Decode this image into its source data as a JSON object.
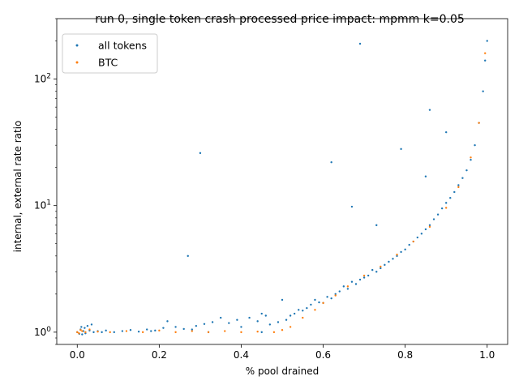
{
  "chart_data": {
    "type": "scatter",
    "title": "run 0, single token crash processed price impact: mpmm k=0.05",
    "xlabel": "% pool drained",
    "ylabel": "internal, external rate ratio",
    "xlim": [
      -0.05,
      1.05
    ],
    "ylim": [
      0.8,
      300
    ],
    "yscale": "log",
    "grid": false,
    "legend_position": "top-left",
    "x_ticks": [
      {
        "value": 0.0,
        "label": "0.0"
      },
      {
        "value": 0.2,
        "label": "0.2"
      },
      {
        "value": 0.4,
        "label": "0.4"
      },
      {
        "value": 0.6,
        "label": "0.6"
      },
      {
        "value": 0.8,
        "label": "0.8"
      },
      {
        "value": 1.0,
        "label": "1.0"
      }
    ],
    "y_ticks": [
      {
        "value": 1,
        "base": "10",
        "exp": "0"
      },
      {
        "value": 10,
        "base": "10",
        "exp": "1"
      },
      {
        "value": 100,
        "base": "10",
        "exp": "2"
      }
    ],
    "series": [
      {
        "name": "all tokens",
        "color": "#1f77b4",
        "points": [
          [
            0.0,
            1.0
          ],
          [
            0.005,
            0.97
          ],
          [
            0.008,
            1.05
          ],
          [
            0.01,
            1.1
          ],
          [
            0.012,
            0.96
          ],
          [
            0.015,
            1.02
          ],
          [
            0.018,
            1.08
          ],
          [
            0.02,
            0.98
          ],
          [
            0.025,
            1.12
          ],
          [
            0.03,
            1.03
          ],
          [
            0.035,
            1.15
          ],
          [
            0.04,
            1.0
          ],
          [
            0.05,
            1.02
          ],
          [
            0.07,
            1.03
          ],
          [
            0.09,
            1.0
          ],
          [
            0.11,
            1.02
          ],
          [
            0.13,
            1.04
          ],
          [
            0.15,
            1.01
          ],
          [
            0.17,
            1.05
          ],
          [
            0.19,
            1.03
          ],
          [
            0.21,
            1.08
          ],
          [
            0.22,
            1.22
          ],
          [
            0.24,
            1.1
          ],
          [
            0.26,
            1.06
          ],
          [
            0.28,
            1.05
          ],
          [
            0.29,
            1.12
          ],
          [
            0.31,
            1.16
          ],
          [
            0.33,
            1.2
          ],
          [
            0.35,
            1.3
          ],
          [
            0.37,
            1.18
          ],
          [
            0.39,
            1.25
          ],
          [
            0.4,
            1.1
          ],
          [
            0.42,
            1.3
          ],
          [
            0.44,
            1.22
          ],
          [
            0.45,
            1.4
          ],
          [
            0.46,
            1.35
          ],
          [
            0.47,
            1.15
          ],
          [
            0.49,
            1.2
          ],
          [
            0.5,
            1.8
          ],
          [
            0.51,
            1.25
          ],
          [
            0.52,
            1.35
          ],
          [
            0.53,
            1.4
          ],
          [
            0.54,
            1.5
          ],
          [
            0.55,
            1.48
          ],
          [
            0.56,
            1.55
          ],
          [
            0.57,
            1.65
          ],
          [
            0.58,
            1.8
          ],
          [
            0.59,
            1.72
          ],
          [
            0.6,
            1.7
          ],
          [
            0.61,
            1.9
          ],
          [
            0.62,
            1.85
          ],
          [
            0.63,
            2.0
          ],
          [
            0.64,
            2.1
          ],
          [
            0.65,
            2.3
          ],
          [
            0.66,
            2.2
          ],
          [
            0.67,
            2.5
          ],
          [
            0.68,
            2.4
          ],
          [
            0.69,
            2.6
          ],
          [
            0.7,
            2.7
          ],
          [
            0.71,
            2.8
          ],
          [
            0.72,
            3.1
          ],
          [
            0.73,
            3.0
          ],
          [
            0.74,
            3.2
          ],
          [
            0.75,
            3.4
          ],
          [
            0.76,
            3.6
          ],
          [
            0.77,
            3.8
          ],
          [
            0.78,
            4.0
          ],
          [
            0.79,
            4.3
          ],
          [
            0.8,
            4.5
          ],
          [
            0.81,
            4.9
          ],
          [
            0.82,
            5.2
          ],
          [
            0.83,
            5.6
          ],
          [
            0.84,
            6.0
          ],
          [
            0.85,
            6.5
          ],
          [
            0.86,
            7.0
          ],
          [
            0.87,
            7.8
          ],
          [
            0.88,
            8.5
          ],
          [
            0.89,
            9.5
          ],
          [
            0.9,
            10.5
          ],
          [
            0.91,
            11.5
          ],
          [
            0.92,
            12.8
          ],
          [
            0.93,
            14.5
          ],
          [
            0.94,
            16.5
          ],
          [
            0.95,
            19.0
          ],
          [
            0.96,
            23.0
          ],
          [
            0.97,
            30.0
          ],
          [
            0.98,
            45.0
          ],
          [
            0.99,
            80.0
          ],
          [
            0.995,
            140.0
          ],
          [
            1.0,
            200.0
          ],
          [
            0.3,
            26.0
          ],
          [
            0.27,
            4.0
          ],
          [
            0.69,
            190.0
          ],
          [
            0.62,
            22.0
          ],
          [
            0.79,
            28.0
          ],
          [
            0.86,
            57.0
          ],
          [
            0.67,
            9.8
          ],
          [
            0.73,
            7.0
          ],
          [
            0.9,
            38.0
          ],
          [
            0.85,
            17.0
          ],
          [
            0.18,
            1.02
          ],
          [
            0.06,
            1.0
          ],
          [
            0.32,
            1.0
          ],
          [
            0.45,
            1.0
          ]
        ]
      },
      {
        "name": "BTC",
        "color": "#ff7f0e",
        "points": [
          [
            0.0,
            1.0
          ],
          [
            0.004,
            0.98
          ],
          [
            0.008,
            1.04
          ],
          [
            0.012,
            1.02
          ],
          [
            0.02,
            1.0
          ],
          [
            0.03,
            1.05
          ],
          [
            0.05,
            1.01
          ],
          [
            0.08,
            1.0
          ],
          [
            0.12,
            1.02
          ],
          [
            0.16,
            1.0
          ],
          [
            0.2,
            1.03
          ],
          [
            0.24,
            1.0
          ],
          [
            0.28,
            1.02
          ],
          [
            0.32,
            1.0
          ],
          [
            0.36,
            1.02
          ],
          [
            0.4,
            1.0
          ],
          [
            0.44,
            1.01
          ],
          [
            0.48,
            1.0
          ],
          [
            0.5,
            1.04
          ],
          [
            0.52,
            1.1
          ],
          [
            0.55,
            1.3
          ],
          [
            0.58,
            1.5
          ],
          [
            0.6,
            1.7
          ],
          [
            0.63,
            1.95
          ],
          [
            0.66,
            2.3
          ],
          [
            0.7,
            2.8
          ],
          [
            0.74,
            3.3
          ],
          [
            0.78,
            4.1
          ],
          [
            0.82,
            5.2
          ],
          [
            0.86,
            6.8
          ],
          [
            0.9,
            9.6
          ],
          [
            0.93,
            14.0
          ],
          [
            0.96,
            24.0
          ],
          [
            0.98,
            45.0
          ],
          [
            0.995,
            160.0
          ]
        ]
      }
    ]
  }
}
